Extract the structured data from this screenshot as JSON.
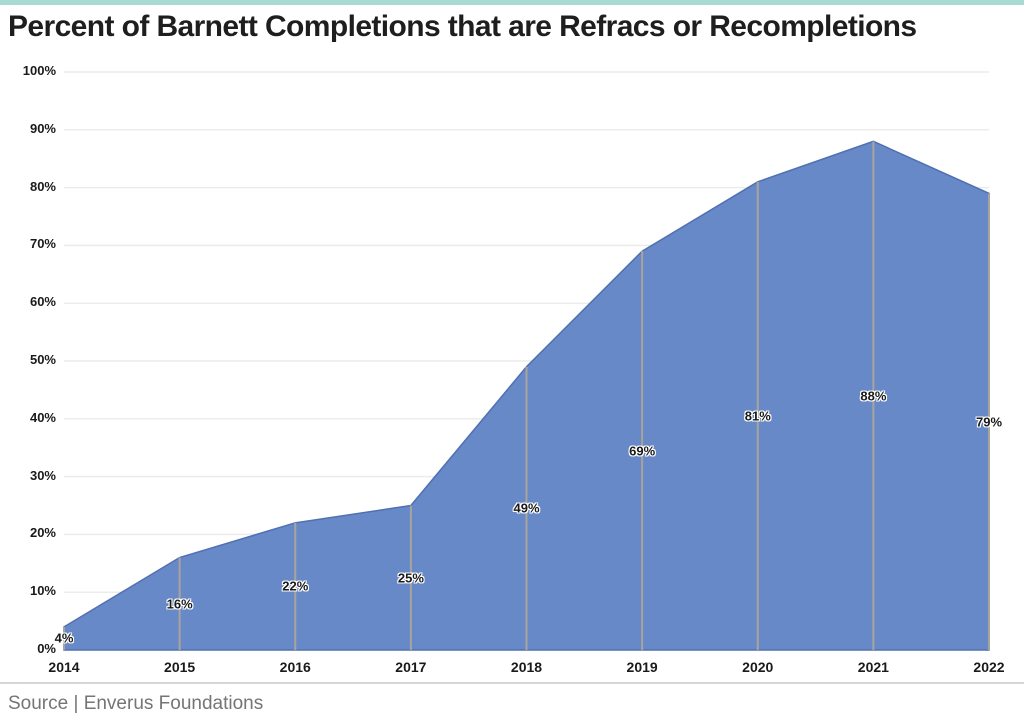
{
  "page": {
    "accent_bar_color": "#a9dbd2"
  },
  "chart_data": {
    "type": "area",
    "title": "Percent of Barnett Completions that are Refracs or Recompletions",
    "categories": [
      "2014",
      "2015",
      "2016",
      "2017",
      "2018",
      "2019",
      "2020",
      "2021",
      "2022"
    ],
    "values": [
      4,
      16,
      22,
      25,
      49,
      69,
      81,
      88,
      79
    ],
    "data_labels": [
      "4%",
      "16%",
      "22%",
      "25%",
      "49%",
      "69%",
      "81%",
      "88%",
      "79%"
    ],
    "y_tick_values": [
      0,
      10,
      20,
      30,
      40,
      50,
      60,
      70,
      80,
      90,
      100
    ],
    "y_tick_labels": [
      "0%",
      "10%",
      "20%",
      "30%",
      "40%",
      "50%",
      "60%",
      "70%",
      "80%",
      "90%",
      "100%"
    ],
    "ylim": [
      0,
      100
    ],
    "grid": {
      "horizontal": true,
      "vertical_droplines": true
    },
    "legend_position": "none",
    "colors": {
      "area_fill": "#6789c7",
      "area_border": "#5070b2",
      "h_gridline": "#ececec",
      "dropline": "#a8a49c",
      "axis_text": "#1a1a1a",
      "title_text": "#1e1e1e",
      "source_text": "#757575"
    }
  },
  "footer": {
    "source_text": "Source | Enverus Foundations"
  }
}
